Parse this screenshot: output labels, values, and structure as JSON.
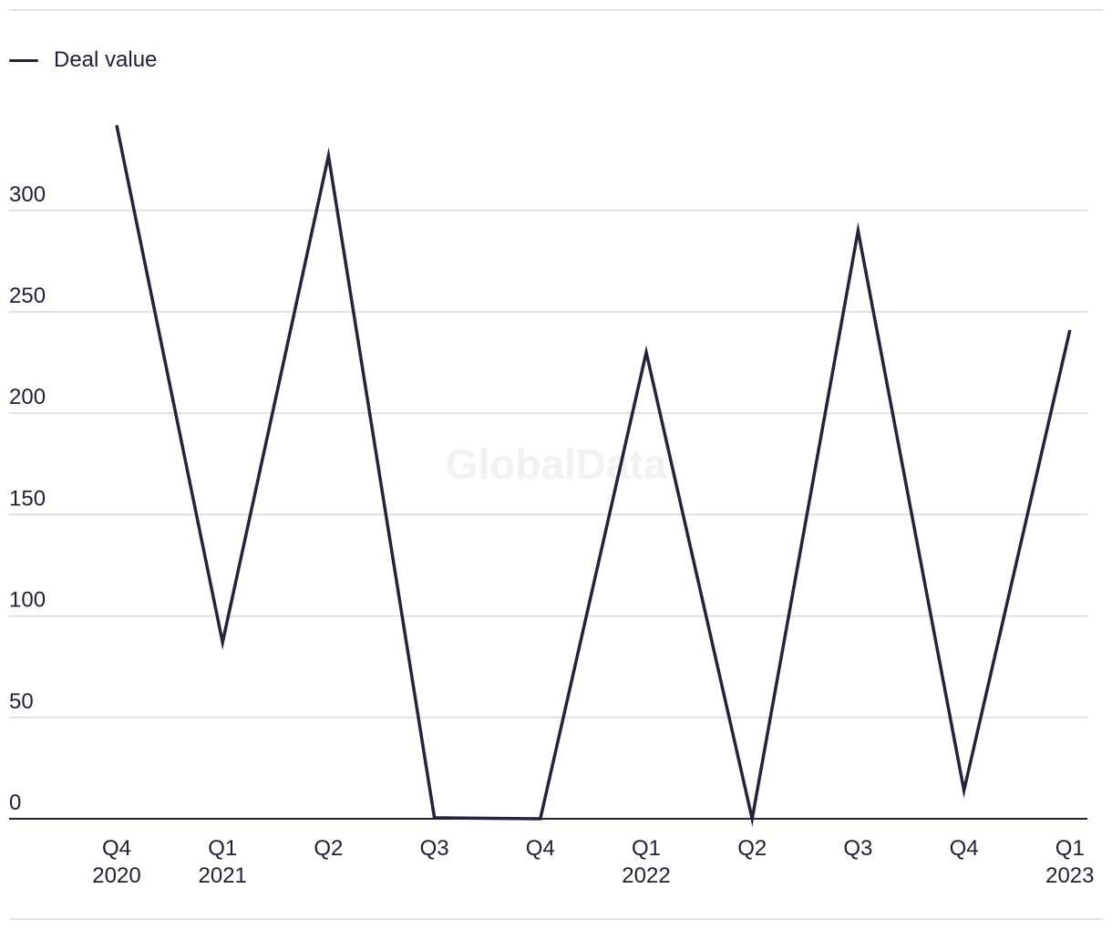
{
  "colors": {
    "line": "#24233f",
    "grid": "#d9d9d9",
    "axis": "#24233f"
  },
  "watermark": "GlobalData",
  "chart_data": {
    "type": "line",
    "title": "",
    "xlabel": "",
    "ylabel": "",
    "categories": [
      [
        "Q4",
        "2020"
      ],
      [
        "Q1",
        "2021"
      ],
      [
        "Q2"
      ],
      [
        "Q3"
      ],
      [
        "Q4"
      ],
      [
        "Q1",
        "2022"
      ],
      [
        "Q2"
      ],
      [
        "Q3"
      ],
      [
        "Q4"
      ],
      [
        "Q1",
        "2023"
      ]
    ],
    "series": [
      {
        "name": "Deal value",
        "values": [
          342,
          87,
          327,
          0.5,
          0,
          230,
          0,
          290,
          14,
          241
        ]
      }
    ],
    "ylim": [
      0,
      350
    ],
    "yticks": [
      0,
      50,
      100,
      150,
      200,
      250,
      300
    ],
    "grid": true,
    "legend_position": "top-left"
  }
}
